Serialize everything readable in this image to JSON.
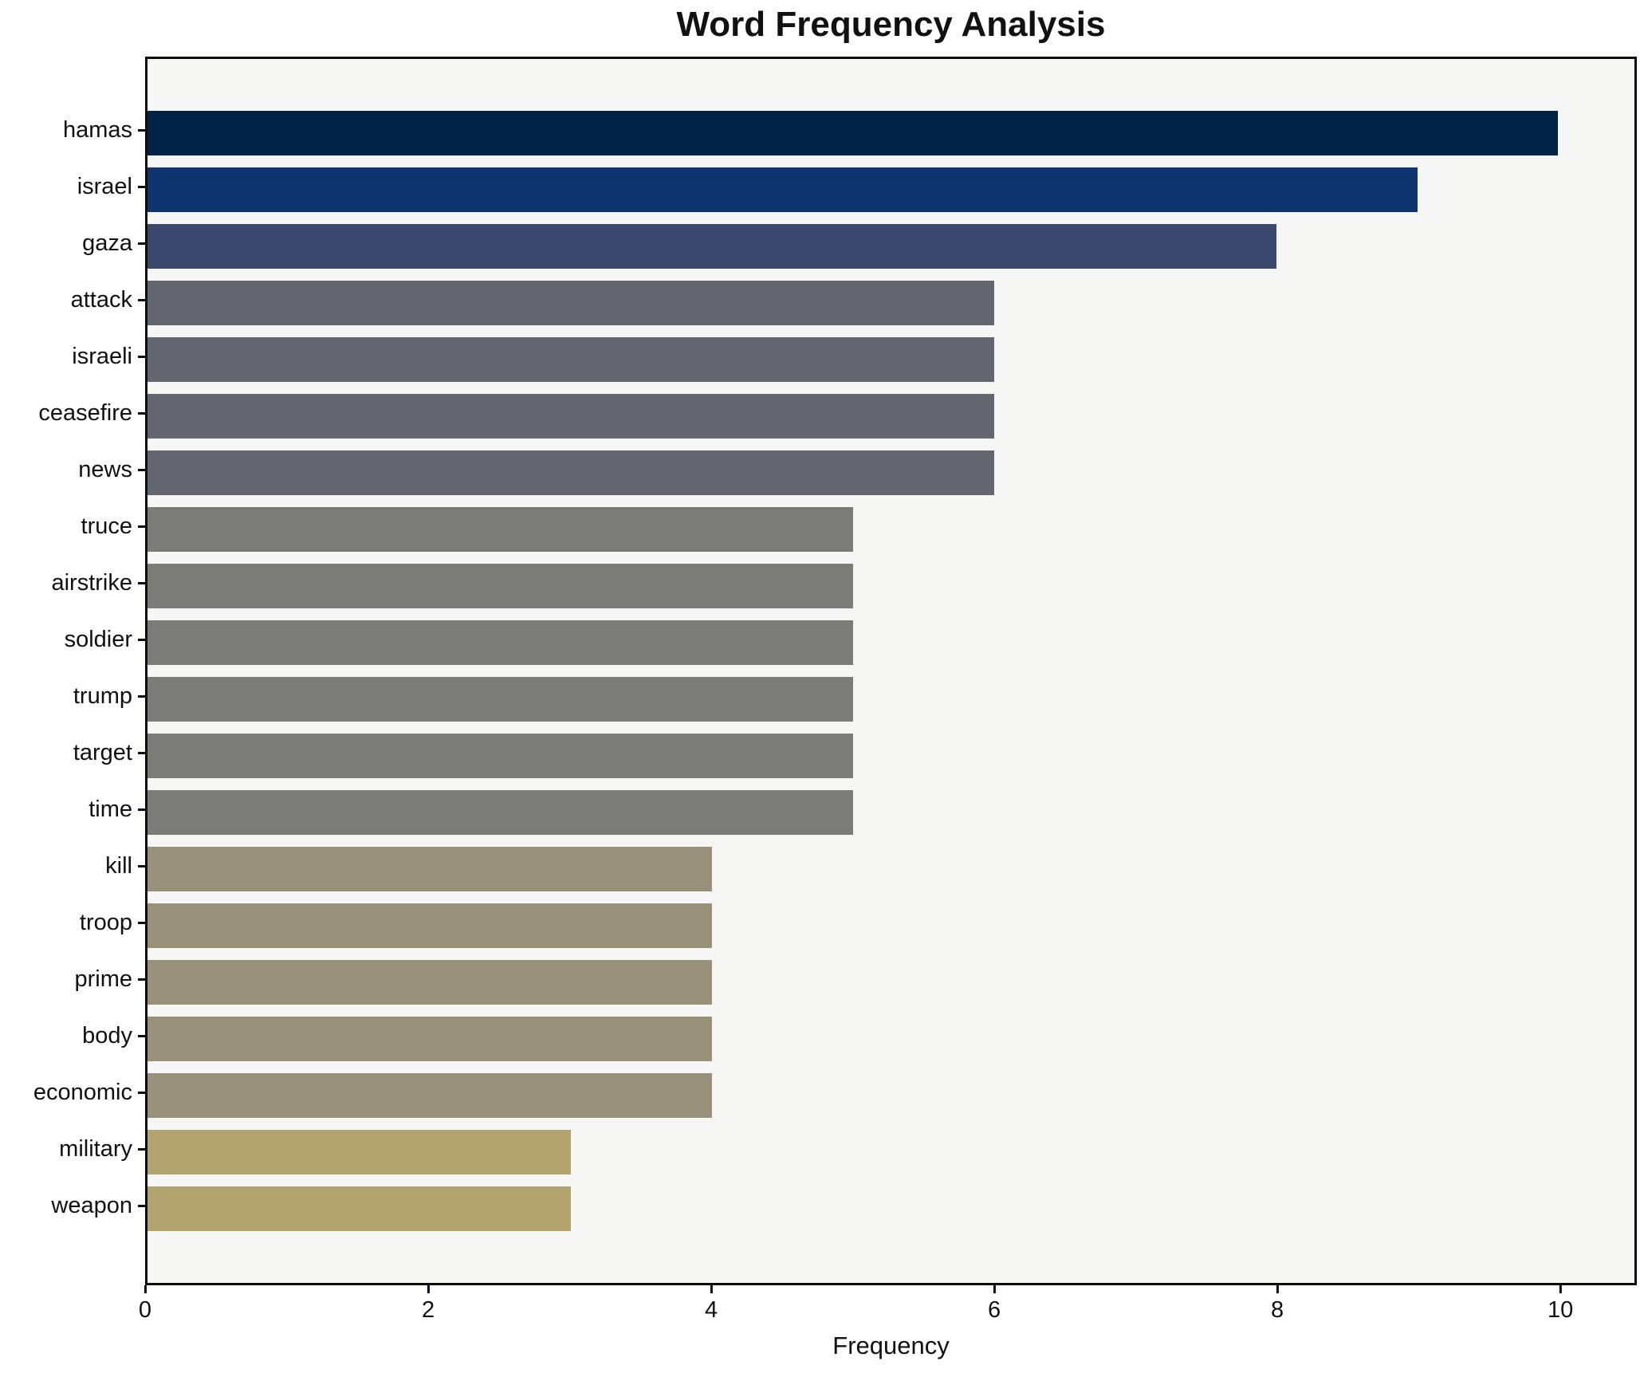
{
  "figure": {
    "background": "#ffffff",
    "plot_background": "#f6f6f5",
    "spine_color": "#0c0c0c",
    "text_color": "#111111"
  },
  "chart_data": {
    "type": "bar",
    "orientation": "horizontal",
    "title": "Word Frequency Analysis",
    "xlabel": "Frequency",
    "ylabel": "",
    "grid": false,
    "legend": false,
    "xlim": [
      0,
      10.54
    ],
    "x_ticks": [
      0,
      2,
      4,
      6,
      8,
      10
    ],
    "categories": [
      "hamas",
      "israel",
      "gaza",
      "attack",
      "israeli",
      "ceasefire",
      "news",
      "truce",
      "airstrike",
      "soldier",
      "trump",
      "target",
      "time",
      "kill",
      "troop",
      "prime",
      "body",
      "economic",
      "military",
      "weapon"
    ],
    "values": [
      10,
      9,
      8,
      6,
      6,
      6,
      6,
      5,
      5,
      5,
      5,
      5,
      5,
      4,
      4,
      4,
      4,
      4,
      3,
      3
    ],
    "bar_colors": [
      "#032248",
      "#0e356d",
      "#3a486e",
      "#64666f",
      "#64666f",
      "#64666f",
      "#64666f",
      "#7c7c76",
      "#7c7c76",
      "#7c7c76",
      "#7c7c76",
      "#7c7c76",
      "#7c7c76",
      "#98917a",
      "#98917a",
      "#98917a",
      "#98917a",
      "#98917a",
      "#b1a46e",
      "#b1a46e"
    ]
  }
}
